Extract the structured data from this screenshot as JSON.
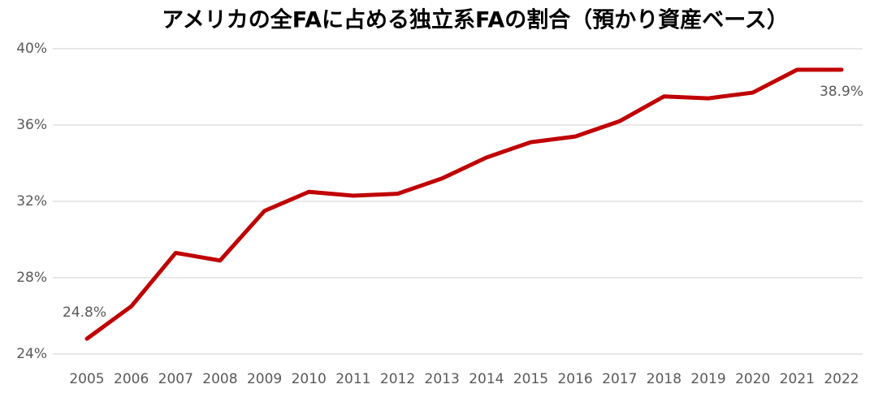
{
  "chart_data": {
    "type": "line",
    "title": "アメリカの全FAに占める独立系FAの割合（預かり資産ベース）",
    "categories": [
      "2005",
      "2006",
      "2007",
      "2008",
      "2009",
      "2010",
      "2011",
      "2012",
      "2013",
      "2014",
      "2015",
      "2016",
      "2017",
      "2018",
      "2019",
      "2020",
      "2021",
      "2022"
    ],
    "series": [
      {
        "name": "独立系FAの割合",
        "color": "#c00000",
        "values": [
          24.8,
          26.5,
          29.3,
          28.9,
          31.5,
          32.5,
          32.3,
          32.4,
          33.2,
          34.3,
          35.1,
          35.4,
          36.2,
          37.5,
          37.4,
          37.7,
          38.9,
          38.9
        ],
        "value_labels": [
          "24.8%",
          null,
          null,
          null,
          null,
          null,
          null,
          null,
          null,
          null,
          null,
          null,
          null,
          null,
          null,
          null,
          null,
          "38.9%"
        ]
      }
    ],
    "ylim": [
      24,
      40
    ],
    "yticks": [
      {
        "value": 24,
        "label": "24%"
      },
      {
        "value": 28,
        "label": "28%"
      },
      {
        "value": 32,
        "label": "32%"
      },
      {
        "value": 36,
        "label": "36%"
      },
      {
        "value": 40,
        "label": "40%"
      }
    ],
    "grid": true,
    "legend": false
  }
}
